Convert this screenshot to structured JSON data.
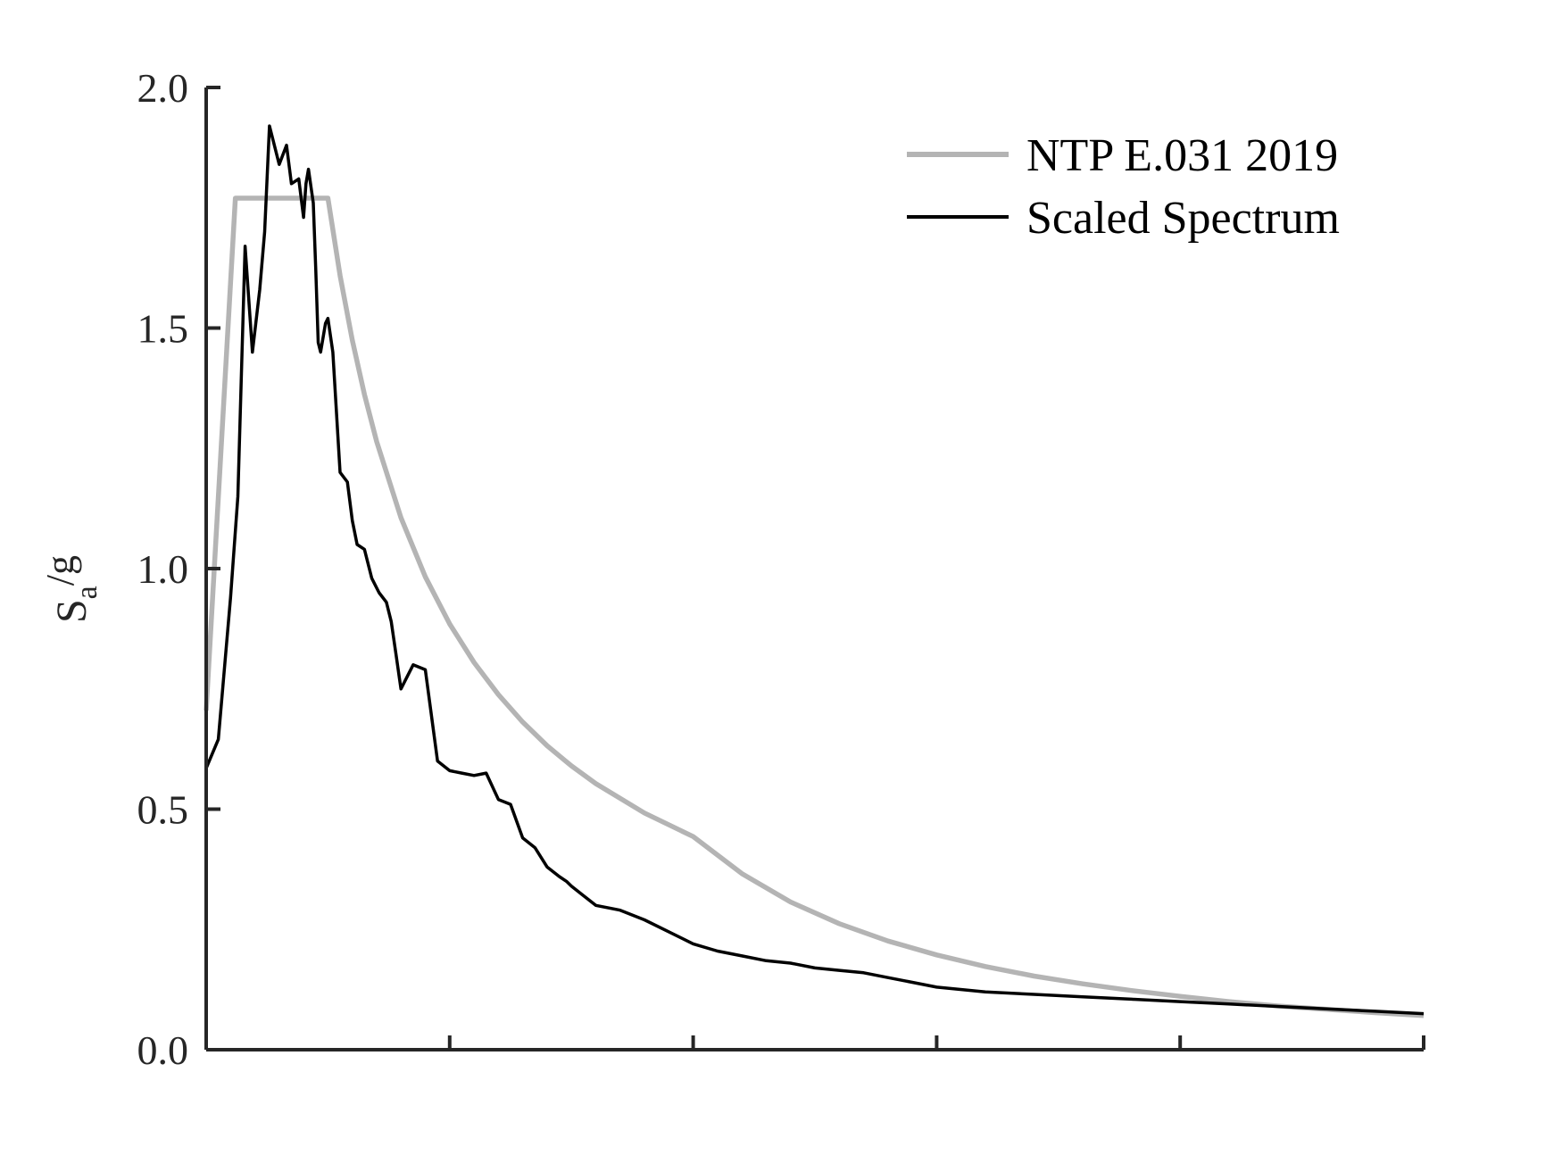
{
  "chart_data": {
    "type": "line",
    "title": "",
    "xlabel": "",
    "ylabel": {
      "base": "S",
      "subscript": "a",
      "suffix": "/g"
    },
    "xlim": [
      0,
      5
    ],
    "ylim": [
      0,
      2
    ],
    "y_ticks": [
      "0.0",
      "0.5",
      "1.0",
      "1.5",
      "2.0"
    ],
    "x_ticks_labeled": false,
    "grid": false,
    "legend_position": "top-right",
    "colors": {
      "ntp": "#b4b4b4",
      "scaled": "#000000",
      "axis": "#262626"
    },
    "series": [
      {
        "name": "NTP E.031 2019",
        "x": [
          0,
          0.12,
          0.2,
          0.4,
          0.5,
          0.55,
          0.6,
          0.65,
          0.7,
          0.8,
          0.9,
          1.0,
          1.1,
          1.2,
          1.3,
          1.4,
          1.5,
          1.6,
          1.8,
          2.0,
          2.2,
          2.4,
          2.6,
          2.8,
          3.0,
          3.2,
          3.4,
          3.6,
          3.8,
          4.0,
          4.2,
          4.4,
          4.6,
          4.8,
          5.0
        ],
        "values": [
          0.705,
          1.77,
          1.77,
          1.77,
          1.77,
          1.609,
          1.475,
          1.362,
          1.264,
          1.106,
          0.983,
          0.885,
          0.805,
          0.738,
          0.681,
          0.632,
          0.59,
          0.553,
          0.492,
          0.443,
          0.366,
          0.307,
          0.262,
          0.226,
          0.197,
          0.173,
          0.153,
          0.137,
          0.123,
          0.111,
          0.1,
          0.091,
          0.084,
          0.077,
          0.071
        ]
      },
      {
        "name": "Scaled Spectrum",
        "x": [
          0,
          0.05,
          0.1,
          0.13,
          0.16,
          0.19,
          0.22,
          0.24,
          0.26,
          0.3,
          0.33,
          0.35,
          0.38,
          0.4,
          0.41,
          0.42,
          0.44,
          0.45,
          0.46,
          0.47,
          0.49,
          0.5,
          0.52,
          0.55,
          0.58,
          0.6,
          0.62,
          0.65,
          0.68,
          0.71,
          0.74,
          0.76,
          0.78,
          0.8,
          0.85,
          0.9,
          0.95,
          1.0,
          1.05,
          1.1,
          1.15,
          1.2,
          1.25,
          1.3,
          1.35,
          1.4,
          1.45,
          1.48,
          1.5,
          1.55,
          1.6,
          1.7,
          1.8,
          1.9,
          2.0,
          2.1,
          2.2,
          2.3,
          2.4,
          2.5,
          2.6,
          2.7,
          2.8,
          2.9,
          3.0,
          3.2,
          3.4,
          3.6,
          3.8,
          4.0,
          4.2,
          4.4,
          4.6,
          4.8,
          5.0
        ],
        "values": [
          0.585,
          0.645,
          0.94,
          1.15,
          1.67,
          1.45,
          1.58,
          1.7,
          1.92,
          1.84,
          1.88,
          1.8,
          1.81,
          1.73,
          1.8,
          1.83,
          1.76,
          1.62,
          1.47,
          1.45,
          1.51,
          1.52,
          1.45,
          1.2,
          1.18,
          1.1,
          1.05,
          1.04,
          0.98,
          0.95,
          0.93,
          0.89,
          0.82,
          0.75,
          0.8,
          0.79,
          0.6,
          0.58,
          0.575,
          0.57,
          0.575,
          0.52,
          0.51,
          0.44,
          0.42,
          0.38,
          0.36,
          0.35,
          0.34,
          0.32,
          0.3,
          0.29,
          0.27,
          0.245,
          0.22,
          0.205,
          0.195,
          0.185,
          0.18,
          0.17,
          0.165,
          0.16,
          0.15,
          0.14,
          0.13,
          0.12,
          0.115,
          0.11,
          0.105,
          0.1,
          0.095,
          0.09,
          0.085,
          0.08,
          0.075
        ]
      }
    ]
  }
}
